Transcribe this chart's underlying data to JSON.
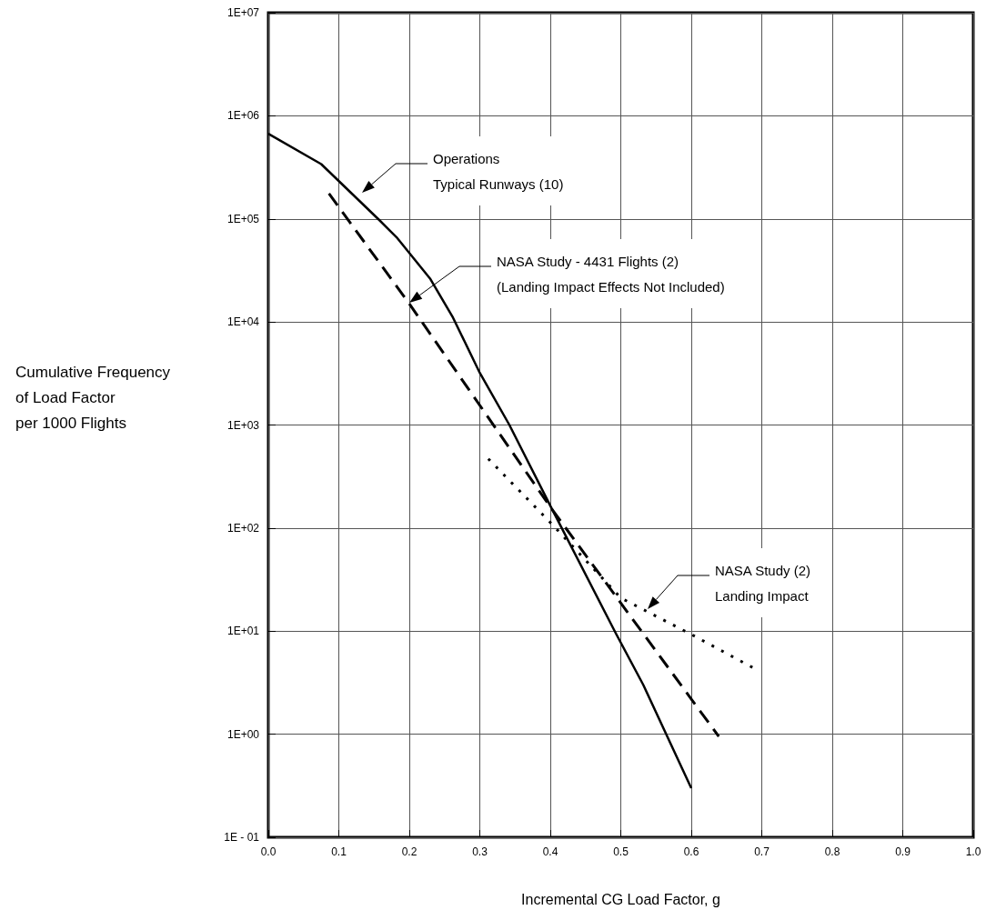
{
  "chart_data": {
    "type": "line",
    "xlabel": "Incremental CG Load Factor, g",
    "ylabel": "Cumulative Frequency\nof Load Factor\nper 1000 Flights",
    "log": "y",
    "grid": true,
    "marker": "none",
    "xlim": [
      0,
      1
    ],
    "ylim": [
      0.1,
      10000000
    ],
    "xticks": [
      {
        "value": 0,
        "label": "0.0"
      },
      0.1,
      0.2,
      0.3,
      0.4,
      0.5,
      0.6,
      0.7,
      0.8,
      0.9,
      {
        "value": 1,
        "label": "1.0"
      }
    ],
    "yticks": [
      {
        "value": 0.1,
        "label": "1E - 01"
      },
      {
        "value": 1,
        "label": "1E+00"
      },
      {
        "value": 10,
        "label": "1E+01"
      },
      {
        "value": 100,
        "label": "1E+02"
      },
      {
        "value": 1000,
        "label": "1E+03"
      },
      {
        "value": 10000,
        "label": "1E+04"
      },
      {
        "value": 100000,
        "label": "1E+05"
      },
      {
        "value": 1000000,
        "label": "1E+06"
      },
      {
        "value": 10000000,
        "label": "1E+07"
      }
    ],
    "series": [
      {
        "color": "#000000",
        "line_style": "solid",
        "x": [
          0,
          0.075,
          0.157,
          0.183,
          0.23,
          0.262,
          0.3,
          0.342,
          0.403,
          0.493,
          0.532,
          0.6
        ],
        "values": [
          670000,
          340000,
          98000,
          65000,
          26000,
          11000,
          3200,
          1000,
          150,
          9.5,
          3,
          0.3
        ]
      },
      {
        "color": "#000000",
        "line_style": "dashed",
        "x": [
          0.086,
          0.2,
          0.403,
          0.639
        ],
        "values": [
          176000,
          15000,
          150,
          0.95
        ]
      },
      {
        "color": "#000000",
        "line_style": "dotted",
        "x": [
          0.312,
          0.403,
          0.5,
          0.6,
          0.688
        ],
        "values": [
          470,
          108,
          21,
          9.3,
          4.4
        ]
      }
    ],
    "annotations": [
      "Operations\nTypical Runways (10)",
      "NASA Study - 4431 Flights (2)\n(Landing Impact Effects Not Included)",
      "NASA Study (2)\nLanding Impact"
    ]
  }
}
